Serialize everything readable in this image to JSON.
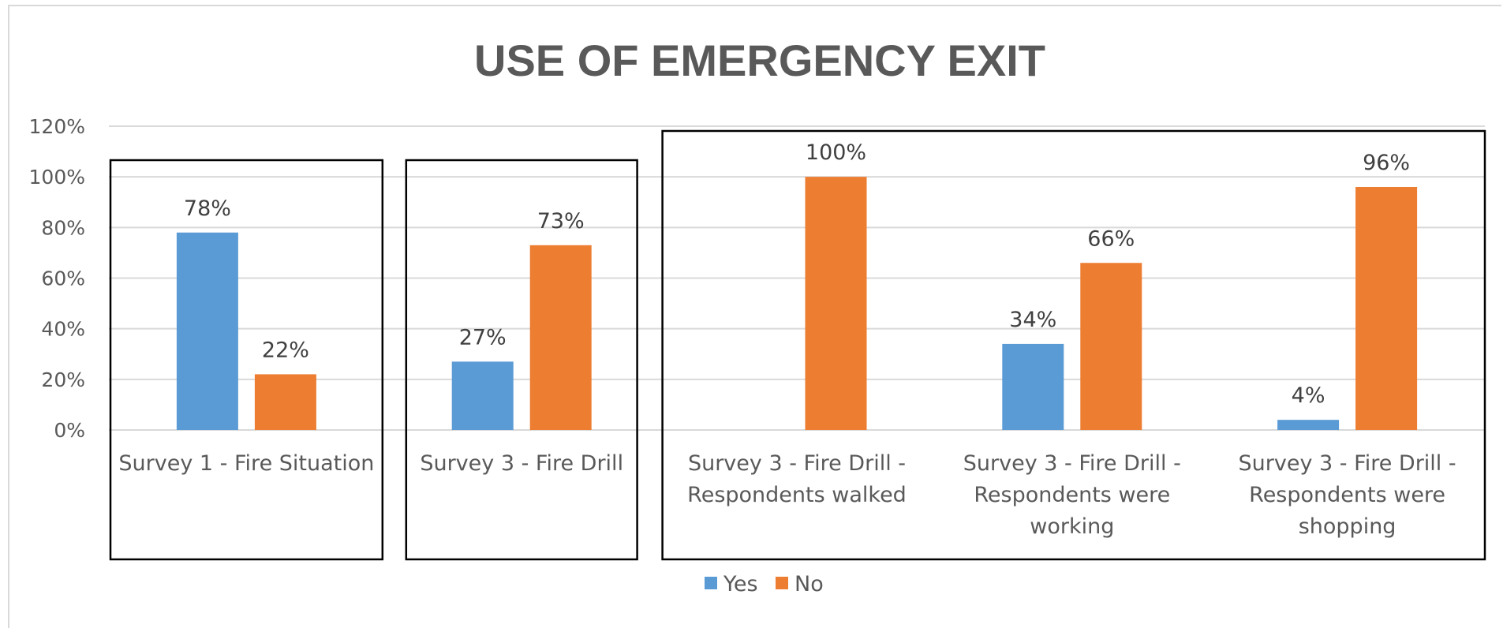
{
  "chart_data": {
    "type": "bar",
    "title": "USE OF EMERGENCY EXIT",
    "xlabel": "",
    "ylabel": "",
    "ylim": [
      0,
      1.2
    ],
    "yticks": [
      "0%",
      "20%",
      "40%",
      "60%",
      "80%",
      "100%",
      "120%"
    ],
    "grid": true,
    "legend_position": "bottom",
    "categories": [
      [
        "Survey 1 - Fire Situation"
      ],
      [
        "Survey 3 - Fire Drill"
      ],
      [
        "Survey 3 - Fire Drill -",
        "Respondents walked"
      ],
      [
        "Survey 3 - Fire Drill -",
        "Respondents were",
        "working"
      ],
      [
        "Survey 3 - Fire Drill -",
        "Respondents were",
        "shopping"
      ]
    ],
    "series": [
      {
        "name": "Yes",
        "color": "#5b9bd5",
        "values": [
          0.78,
          0.27,
          null,
          0.34,
          0.04
        ],
        "labels": [
          "78%",
          "27%",
          "",
          "34%",
          "4%"
        ]
      },
      {
        "name": "No",
        "color": "#ed7d31",
        "values": [
          0.22,
          0.73,
          1.0,
          0.66,
          0.96
        ],
        "labels": [
          "22%",
          "73%",
          "100%",
          "66%",
          "96%"
        ]
      }
    ],
    "group_boxes": [
      [
        0
      ],
      [
        1
      ],
      [
        2,
        3,
        4
      ]
    ]
  }
}
